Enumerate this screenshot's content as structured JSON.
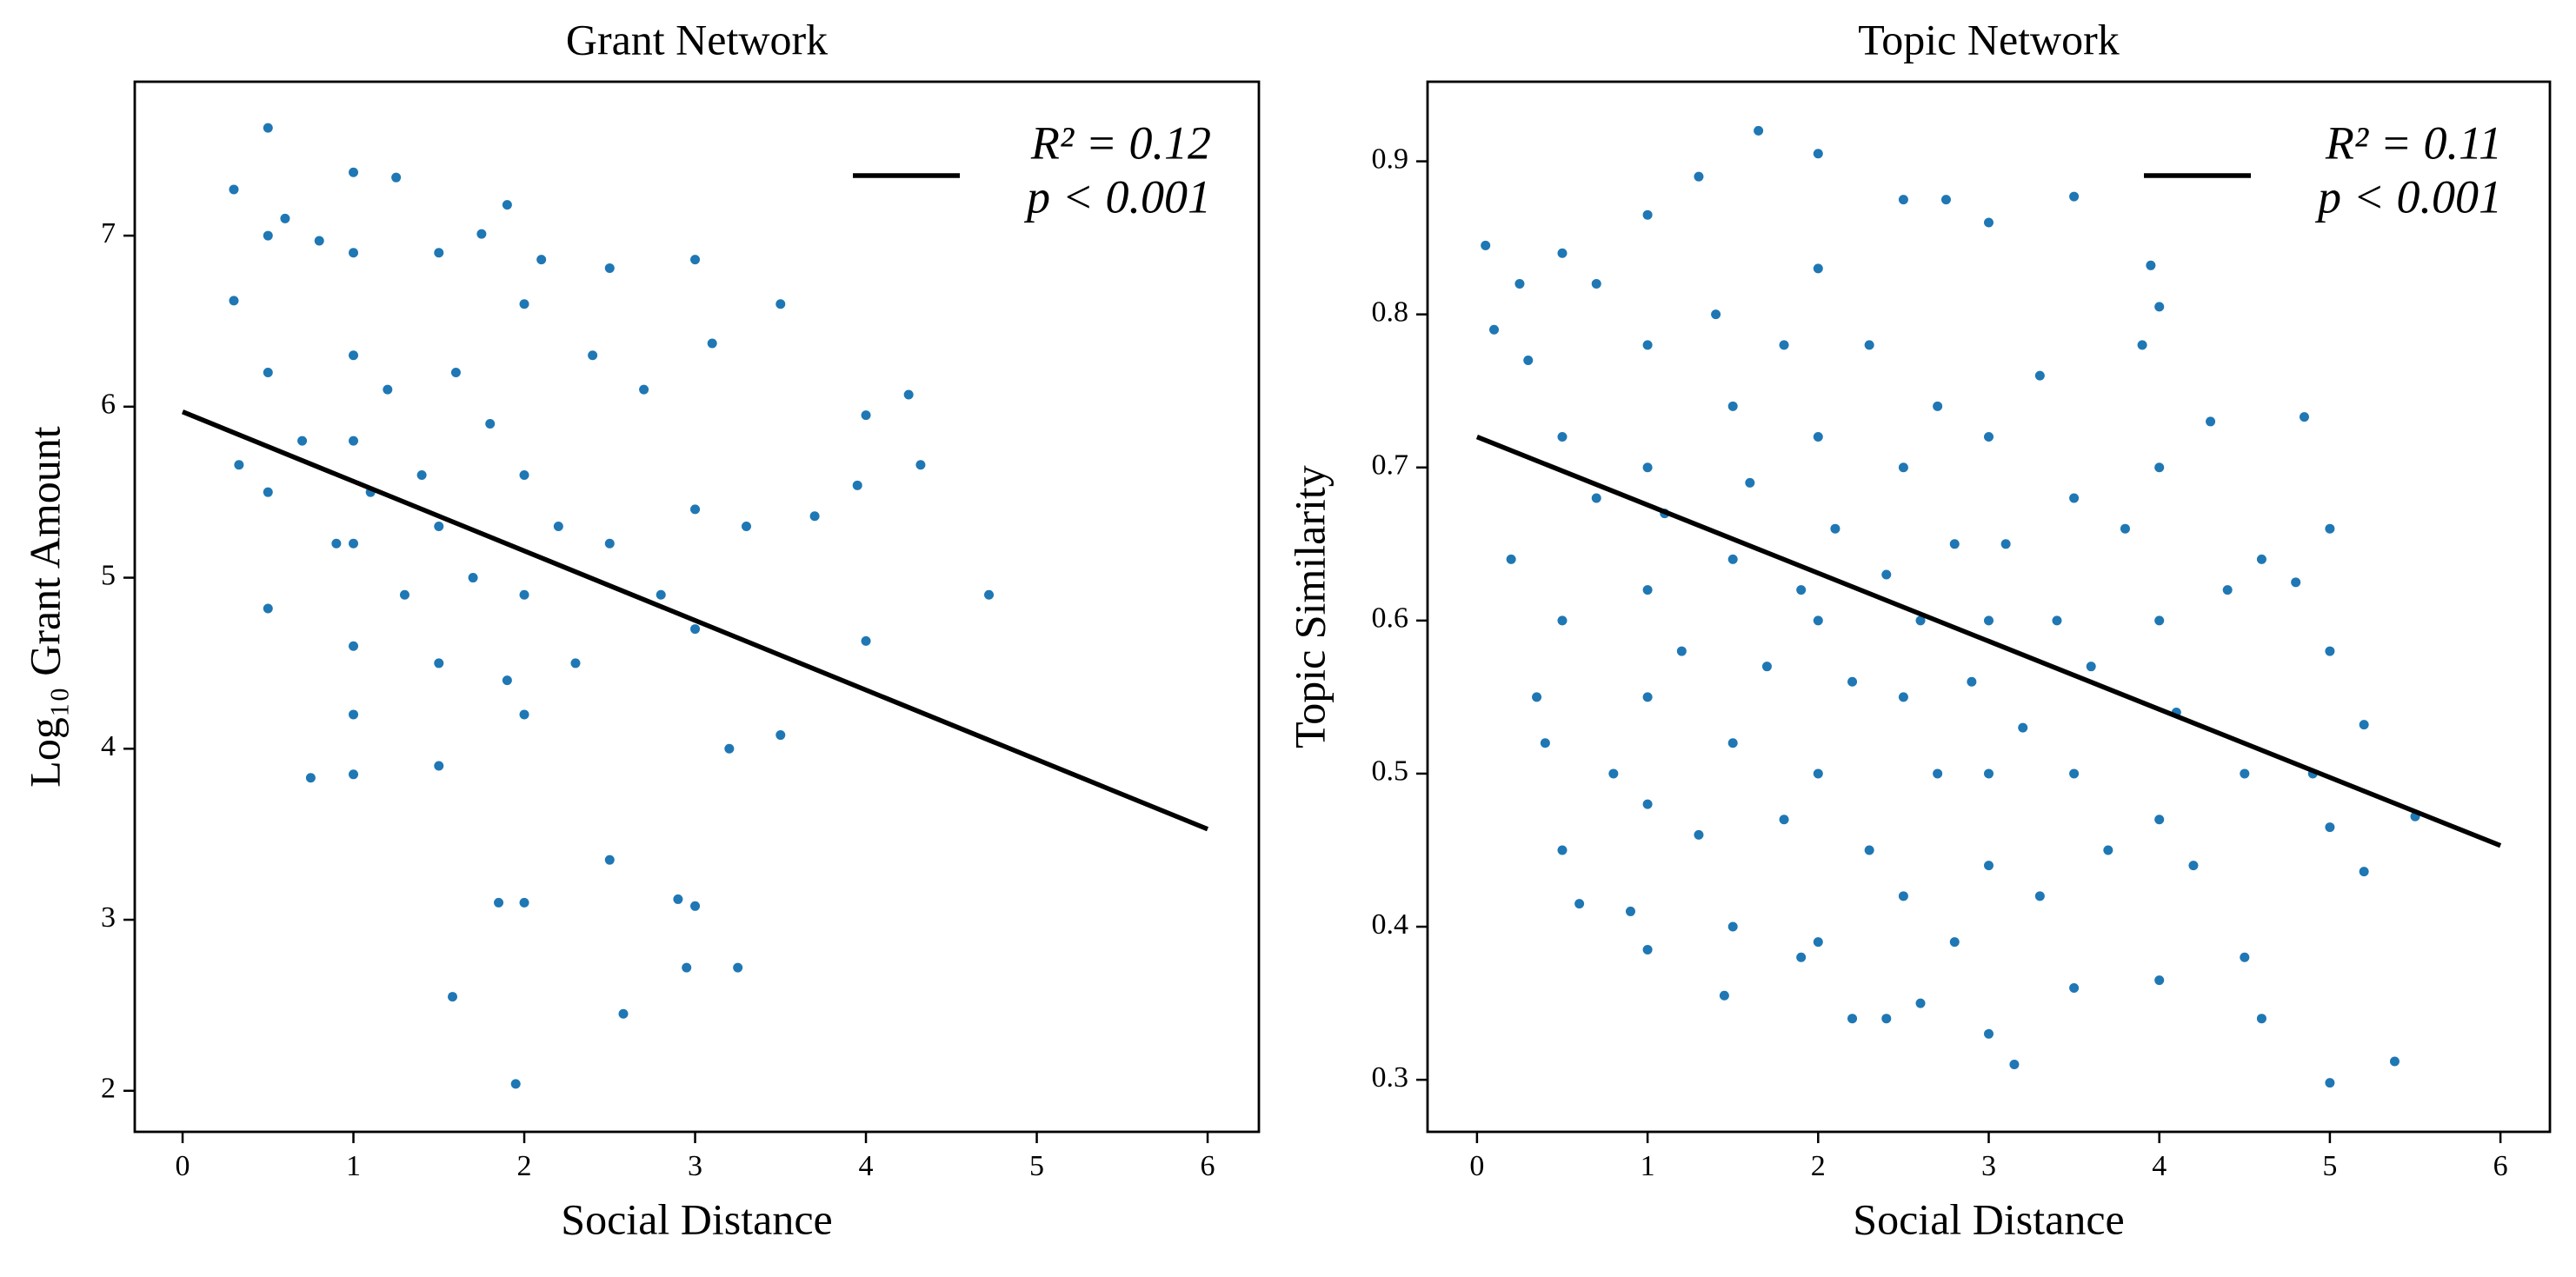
{
  "chart_data": [
    {
      "type": "scatter",
      "title": "Grant Network",
      "xlabel": "Social Distance",
      "ylabel": "Log₁₀ Grant Amount",
      "xlim": [
        -0.28,
        6.3
      ],
      "ylim": [
        1.76,
        7.9
      ],
      "xticks": [
        0,
        1,
        2,
        3,
        4,
        5,
        6
      ],
      "yticks": [
        2,
        3,
        4,
        5,
        6,
        7
      ],
      "series": [
        {
          "type": "scatter",
          "color": "#1f77b4",
          "x": [
            0.3,
            0.3,
            0.33,
            0.5,
            0.5,
            0.5,
            0.5,
            0.5,
            0.6,
            0.7,
            0.75,
            0.8,
            0.9,
            1,
            1,
            1,
            1,
            1,
            1,
            1,
            1,
            1.1,
            1.2,
            1.25,
            1.3,
            1.4,
            1.5,
            1.5,
            1.5,
            1.5,
            1.58,
            1.6,
            1.7,
            1.75,
            1.8,
            1.85,
            1.9,
            1.9,
            1.95,
            2,
            2,
            2,
            2,
            2,
            2.1,
            2.2,
            2.3,
            2.4,
            2.5,
            2.5,
            2.5,
            2.58,
            2.7,
            2.8,
            2.9,
            2.95,
            3,
            3,
            3,
            3,
            3.1,
            3.2,
            3.25,
            3.3,
            3.5,
            3.5,
            3.7,
            3.95,
            4,
            4,
            4.25,
            4.32,
            4.72
          ],
          "values": [
            7.27,
            6.62,
            5.66,
            7.63,
            7.0,
            6.2,
            5.5,
            4.82,
            7.1,
            5.8,
            3.83,
            6.97,
            5.2,
            7.37,
            6.9,
            6.3,
            5.8,
            5.2,
            4.6,
            4.2,
            3.85,
            5.5,
            6.1,
            7.34,
            4.9,
            5.6,
            6.9,
            5.3,
            4.5,
            3.9,
            2.55,
            6.2,
            5.0,
            7.01,
            5.9,
            3.1,
            7.18,
            4.4,
            2.04,
            6.6,
            5.6,
            4.9,
            4.2,
            3.1,
            6.86,
            5.3,
            4.5,
            6.3,
            6.81,
            5.2,
            3.35,
            2.45,
            6.1,
            4.9,
            3.12,
            2.72,
            6.86,
            5.4,
            4.7,
            3.08,
            6.37,
            4.0,
            2.72,
            5.3,
            6.6,
            4.08,
            5.36,
            5.54,
            5.95,
            4.63,
            6.07,
            5.66,
            4.9
          ]
        },
        {
          "type": "line",
          "color": "#000000",
          "x": [
            0,
            6
          ],
          "values": [
            5.97,
            3.53
          ],
          "legend_label": [
            "R² = 0.12",
            "p < 0.001"
          ]
        }
      ]
    },
    {
      "type": "scatter",
      "title": "Topic Network",
      "xlabel": "Social Distance",
      "ylabel": "Topic Similarity",
      "xlim": [
        -0.29,
        6.29
      ],
      "ylim": [
        0.266,
        0.952
      ],
      "xticks": [
        0,
        1,
        2,
        3,
        4,
        5,
        6
      ],
      "yticks": [
        0.3,
        0.4,
        0.5,
        0.6,
        0.7,
        0.8,
        0.9
      ],
      "series": [
        {
          "type": "scatter",
          "color": "#1f77b4",
          "x": [
            0.05,
            0.1,
            0.2,
            0.25,
            0.3,
            0.35,
            0.4,
            0.5,
            0.5,
            0.5,
            0.5,
            0.6,
            0.7,
            0.7,
            0.8,
            0.9,
            1,
            1,
            1,
            1,
            1,
            1,
            1,
            1.1,
            1.2,
            1.3,
            1.3,
            1.4,
            1.45,
            1.5,
            1.5,
            1.5,
            1.5,
            1.6,
            1.65,
            1.7,
            1.8,
            1.8,
            1.9,
            1.9,
            2,
            2,
            2,
            2,
            2,
            2,
            2.1,
            2.2,
            2.2,
            2.3,
            2.3,
            2.4,
            2.4,
            2.5,
            2.5,
            2.5,
            2.5,
            2.6,
            2.6,
            2.7,
            2.7,
            2.75,
            2.8,
            2.8,
            2.9,
            3,
            3,
            3,
            3,
            3,
            3,
            3.1,
            3.15,
            3.2,
            3.3,
            3.3,
            3.4,
            3.5,
            3.5,
            3.5,
            3.5,
            3.6,
            3.7,
            3.8,
            3.9,
            3.95,
            4,
            4,
            4,
            4,
            4,
            4.1,
            4.2,
            4.3,
            4.4,
            4.5,
            4.5,
            4.6,
            4.6,
            4.8,
            4.85,
            4.9,
            5,
            5,
            5,
            5,
            5.2,
            5.2,
            5.38,
            5.5
          ],
          "values": [
            0.845,
            0.79,
            0.64,
            0.82,
            0.77,
            0.55,
            0.52,
            0.84,
            0.72,
            0.6,
            0.45,
            0.415,
            0.82,
            0.68,
            0.5,
            0.41,
            0.865,
            0.78,
            0.7,
            0.62,
            0.55,
            0.48,
            0.385,
            0.67,
            0.58,
            0.89,
            0.46,
            0.8,
            0.355,
            0.74,
            0.64,
            0.52,
            0.4,
            0.69,
            0.92,
            0.57,
            0.78,
            0.47,
            0.62,
            0.38,
            0.905,
            0.83,
            0.72,
            0.6,
            0.5,
            0.39,
            0.66,
            0.56,
            0.34,
            0.78,
            0.45,
            0.63,
            0.34,
            0.875,
            0.7,
            0.55,
            0.42,
            0.6,
            0.35,
            0.74,
            0.5,
            0.875,
            0.65,
            0.39,
            0.56,
            0.86,
            0.72,
            0.6,
            0.5,
            0.44,
            0.33,
            0.65,
            0.31,
            0.53,
            0.76,
            0.42,
            0.6,
            0.877,
            0.68,
            0.5,
            0.36,
            0.57,
            0.45,
            0.66,
            0.78,
            0.832,
            0.805,
            0.7,
            0.6,
            0.47,
            0.365,
            0.54,
            0.44,
            0.73,
            0.62,
            0.5,
            0.38,
            0.64,
            0.34,
            0.625,
            0.733,
            0.5,
            0.66,
            0.58,
            0.465,
            0.298,
            0.436,
            0.532,
            0.312,
            0.472
          ]
        },
        {
          "type": "line",
          "color": "#000000",
          "x": [
            0,
            6
          ],
          "values": [
            0.72,
            0.453
          ],
          "legend_label": [
            "R² = 0.11",
            "p < 0.001"
          ]
        }
      ]
    }
  ]
}
